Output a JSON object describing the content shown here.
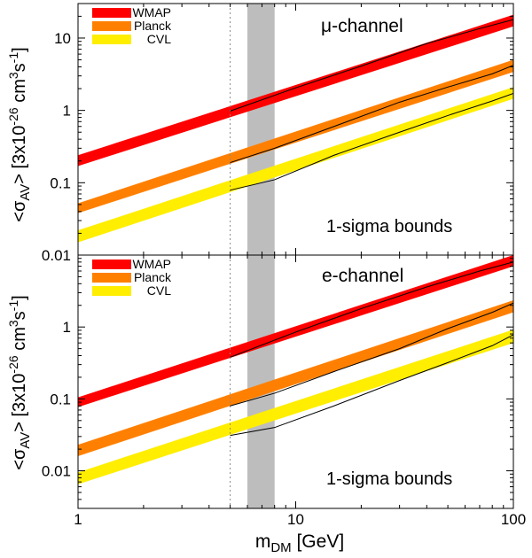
{
  "chart_data": {
    "type": "area",
    "x_scale": "log",
    "y_scale": "log",
    "xlabel": "m",
    "xlabel_sub": "DM",
    "xlabel_unit": " [GeV]",
    "x_ticks": [
      {
        "value": 1,
        "label": "1"
      },
      {
        "value": 10,
        "label": "10"
      },
      {
        "value": 100,
        "label": "100"
      }
    ],
    "xlim": [
      1,
      100
    ],
    "x_lower_bound_line": 5,
    "excluded_band": [
      6,
      8
    ],
    "panels": [
      {
        "id": "mu",
        "ylim": [
          0.01,
          30
        ],
        "y_ticks": [
          {
            "value": 0.01,
            "label": "0.01"
          },
          {
            "value": 0.1,
            "label": "0.1"
          },
          {
            "value": 1,
            "label": "1"
          },
          {
            "value": 10,
            "label": "10"
          }
        ],
        "ylabel": {
          "open": "<σ",
          "sub": "AV",
          "mid": "> [3x10",
          "exp1": "-26",
          "unit": " cm",
          "exp2": "3",
          "s": "s",
          "exp3": "-1",
          "close": "]"
        },
        "channel_label": "μ-channel",
        "bounds_label": "1-sigma bounds",
        "series": [
          {
            "name": "WMAP",
            "color": "#ff0000",
            "lower": [
              0.17,
              14.5
            ],
            "upper": [
              0.24,
              21.0
            ],
            "line": [
              [
                5,
                0.98
              ],
              [
                10,
                2.05
              ],
              [
                20,
                4.1
              ],
              [
                40,
                8.4
              ],
              [
                70,
                13.5
              ],
              [
                100,
                18.0
              ]
            ]
          },
          {
            "name": "Planck",
            "color": "#ff8000",
            "lower": [
              0.038,
              3.4
            ],
            "upper": [
              0.052,
              5.0
            ],
            "line": [
              [
                5,
                0.19
              ],
              [
                8,
                0.3
              ],
              [
                15,
                0.6
              ],
              [
                30,
                1.3
              ],
              [
                50,
                2.1
              ],
              [
                80,
                3.2
              ],
              [
                100,
                4.2
              ]
            ]
          },
          {
            "name": "CVL",
            "color": "#ffee00",
            "lower": [
              0.015,
              1.45
            ],
            "upper": [
              0.022,
              2.1
            ],
            "line": [
              [
                5,
                0.079
              ],
              [
                8,
                0.11
              ],
              [
                15,
                0.24
              ],
              [
                30,
                0.5
              ],
              [
                50,
                0.85
              ],
              [
                80,
                1.35
              ],
              [
                100,
                1.72
              ]
            ]
          }
        ]
      },
      {
        "id": "e",
        "ylim": [
          0.003,
          10
        ],
        "y_ticks": [
          {
            "value": 0.01,
            "label": "0.01"
          },
          {
            "value": 0.1,
            "label": "0.1"
          },
          {
            "value": 1,
            "label": "1"
          }
        ],
        "ylabel": {
          "open": "<σ",
          "sub": "AV",
          "mid": "> [3x10",
          "exp1": "-26",
          "unit": " cm",
          "exp2": "3",
          "s": "s",
          "exp3": "-1",
          "close": "]"
        },
        "channel_label": "e-channel",
        "bounds_label": "1-sigma bounds",
        "series": [
          {
            "name": "WMAP",
            "color": "#ff0000",
            "lower": [
              0.077,
              7.0
            ],
            "upper": [
              0.105,
              10.0
            ],
            "line": [
              [
                5,
                0.38
              ],
              [
                10,
                0.85
              ],
              [
                20,
                1.8
              ],
              [
                40,
                3.6
              ],
              [
                70,
                6.0
              ],
              [
                100,
                8.0
              ]
            ]
          },
          {
            "name": "Planck",
            "color": "#ff8000",
            "lower": [
              0.016,
              1.6
            ],
            "upper": [
              0.023,
              2.35
            ],
            "line": [
              [
                5,
                0.08
              ],
              [
                8,
                0.12
              ],
              [
                15,
                0.24
              ],
              [
                30,
                0.5
              ],
              [
                50,
                0.95
              ],
              [
                80,
                1.6
              ],
              [
                100,
                2.15
              ]
            ]
          },
          {
            "name": "CVL",
            "color": "#ffee00",
            "lower": [
              0.0065,
              0.6
            ],
            "upper": [
              0.0095,
              0.92
            ],
            "line": [
              [
                5,
                0.031
              ],
              [
                8,
                0.04
              ],
              [
                15,
                0.08
              ],
              [
                30,
                0.18
              ],
              [
                50,
                0.32
              ],
              [
                80,
                0.55
              ],
              [
                100,
                0.78
              ]
            ]
          }
        ]
      }
    ]
  }
}
